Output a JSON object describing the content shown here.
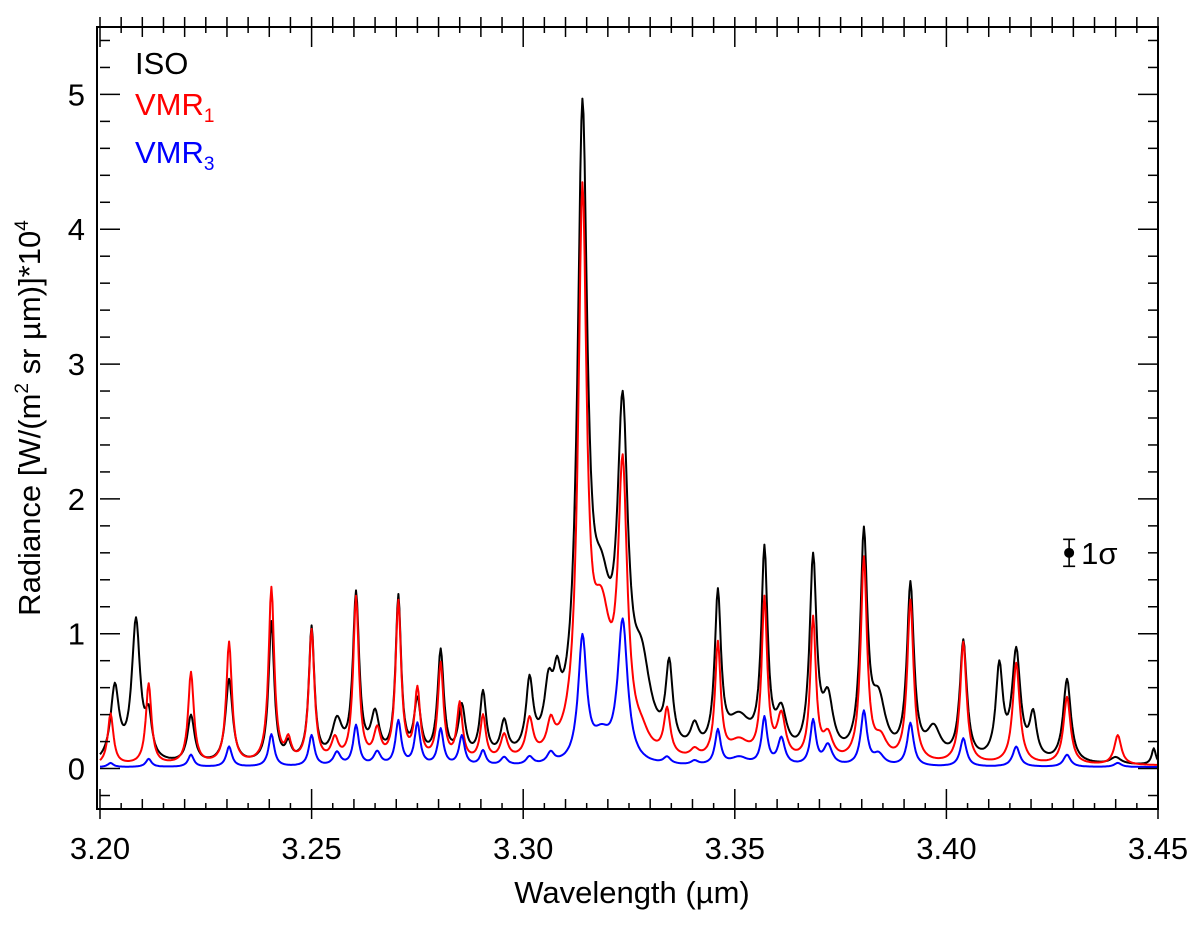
{
  "chart_data": {
    "type": "line",
    "title": "",
    "xlabel": {
      "main": "Wavelength (",
      "unit": "µm",
      "close": ")"
    },
    "ylabel": {
      "p1": "Radiance [W/(m",
      "sup1": "2",
      "p2": " sr ",
      "unit": "µm",
      "p3": ")]*10",
      "sup2": "4"
    },
    "xlim": [
      3.2,
      3.45
    ],
    "ylim": [
      -0.3,
      5.5
    ],
    "x_ticks": [
      3.2,
      3.25,
      3.3,
      3.35,
      3.4,
      3.45
    ],
    "x_tick_labels": [
      "3.20",
      "3.25",
      "3.30",
      "3.35",
      "3.40",
      "3.45"
    ],
    "y_ticks": [
      0,
      1,
      2,
      3,
      4,
      5
    ],
    "y_tick_labels": [
      "0",
      "1",
      "2",
      "3",
      "4",
      "5"
    ],
    "legend": {
      "placement": "top-left",
      "entries": [
        {
          "name": "ISO",
          "sub": "",
          "color": "#000000"
        },
        {
          "name": "VMR",
          "sub": "1",
          "color": "#ff0000"
        },
        {
          "name": "VMR",
          "sub": "3",
          "color": "#0000ff"
        }
      ]
    },
    "error_bar": {
      "x": 3.429,
      "y": 1.6,
      "err": 0.1,
      "label": "1σ"
    },
    "series": [
      {
        "name": "ISO",
        "color": "#000000",
        "baseline": 0.02,
        "peaks": [
          [
            3.2035,
            0.55,
            0.0012
          ],
          [
            3.2085,
            1.04,
            0.0012
          ],
          [
            3.2115,
            0.29,
            0.0009
          ],
          [
            3.2215,
            0.35,
            0.001
          ],
          [
            3.2305,
            0.62,
            0.001
          ],
          [
            3.2405,
            1.04,
            0.0008
          ],
          [
            3.2445,
            0.12,
            0.0008
          ],
          [
            3.25,
            0.99,
            0.0008
          ],
          [
            3.256,
            0.28,
            0.0015
          ],
          [
            3.2605,
            1.22,
            0.0009
          ],
          [
            3.265,
            0.32,
            0.0012
          ],
          [
            3.2705,
            1.2,
            0.0008
          ],
          [
            3.275,
            0.42,
            0.001
          ],
          [
            3.2805,
            0.8,
            0.0009
          ],
          [
            3.2855,
            0.38,
            0.001
          ],
          [
            3.2905,
            0.48,
            0.0009
          ],
          [
            3.2955,
            0.25,
            0.001
          ],
          [
            3.3015,
            0.52,
            0.001
          ],
          [
            3.306,
            0.4,
            0.0012
          ],
          [
            3.308,
            0.35,
            0.001
          ],
          [
            3.314,
            4.55,
            0.0014
          ],
          [
            3.3185,
            0.95,
            0.003
          ],
          [
            3.3235,
            2.28,
            0.0015
          ],
          [
            3.328,
            0.55,
            0.0025
          ],
          [
            3.3345,
            0.6,
            0.001
          ],
          [
            3.3405,
            0.18,
            0.0012
          ],
          [
            3.346,
            1.15,
            0.0009
          ],
          [
            3.351,
            0.28,
            0.0035
          ],
          [
            3.357,
            1.48,
            0.0009
          ],
          [
            3.361,
            0.3,
            0.0015
          ],
          [
            3.3685,
            1.45,
            0.001
          ],
          [
            3.372,
            0.4,
            0.0015
          ],
          [
            3.3805,
            1.62,
            0.001
          ],
          [
            3.384,
            0.4,
            0.002
          ],
          [
            3.3915,
            1.28,
            0.001
          ],
          [
            3.397,
            0.22,
            0.002
          ],
          [
            3.404,
            0.88,
            0.001
          ],
          [
            3.4125,
            0.68,
            0.001
          ],
          [
            3.4165,
            0.8,
            0.0012
          ],
          [
            3.4205,
            0.32,
            0.001
          ],
          [
            3.4285,
            0.62,
            0.0011
          ],
          [
            3.44,
            0.05,
            0.0015
          ],
          [
            3.449,
            0.12,
            0.0006
          ]
        ]
      },
      {
        "name": "VMR1",
        "color": "#ff0000",
        "baseline": 0.02,
        "peaks": [
          [
            3.2025,
            0.38,
            0.0008
          ],
          [
            3.2115,
            0.6,
            0.0008
          ],
          [
            3.2215,
            0.68,
            0.0008
          ],
          [
            3.2305,
            0.9,
            0.0008
          ],
          [
            3.2405,
            1.3,
            0.0008
          ],
          [
            3.2445,
            0.15,
            0.0008
          ],
          [
            3.25,
            0.98,
            0.0008
          ],
          [
            3.2555,
            0.16,
            0.001
          ],
          [
            3.2605,
            1.22,
            0.0008
          ],
          [
            3.2655,
            0.22,
            0.001
          ],
          [
            3.2705,
            1.18,
            0.0008
          ],
          [
            3.275,
            0.52,
            0.0008
          ],
          [
            3.2805,
            0.72,
            0.0008
          ],
          [
            3.285,
            0.42,
            0.0008
          ],
          [
            3.2905,
            0.33,
            0.0008
          ],
          [
            3.2955,
            0.18,
            0.001
          ],
          [
            3.3015,
            0.28,
            0.001
          ],
          [
            3.3065,
            0.2,
            0.001
          ],
          [
            3.314,
            4.02,
            0.0012
          ],
          [
            3.3185,
            0.92,
            0.0028
          ],
          [
            3.3235,
            2.0,
            0.0013
          ],
          [
            3.328,
            0.1,
            0.002
          ],
          [
            3.334,
            0.34,
            0.0009
          ],
          [
            3.3405,
            0.06,
            0.0012
          ],
          [
            3.346,
            0.85,
            0.0008
          ],
          [
            3.351,
            0.14,
            0.003
          ],
          [
            3.357,
            1.18,
            0.0008
          ],
          [
            3.361,
            0.32,
            0.0012
          ],
          [
            3.3685,
            1.05,
            0.0008
          ],
          [
            3.372,
            0.18,
            0.0014
          ],
          [
            3.3805,
            1.5,
            0.0009
          ],
          [
            3.3845,
            0.15,
            0.0018
          ],
          [
            3.3915,
            1.2,
            0.0009
          ],
          [
            3.404,
            0.9,
            0.0009
          ],
          [
            3.4165,
            0.75,
            0.001
          ],
          [
            3.4285,
            0.5,
            0.001
          ],
          [
            3.4405,
            0.22,
            0.001
          ]
        ]
      },
      {
        "name": "VMR3",
        "color": "#0000ff",
        "baseline": 0.01,
        "peaks": [
          [
            3.2025,
            0.03,
            0.0008
          ],
          [
            3.2115,
            0.06,
            0.0008
          ],
          [
            3.2215,
            0.09,
            0.0008
          ],
          [
            3.2305,
            0.15,
            0.0008
          ],
          [
            3.2405,
            0.24,
            0.0008
          ],
          [
            3.25,
            0.23,
            0.0008
          ],
          [
            3.256,
            0.1,
            0.001
          ],
          [
            3.2605,
            0.3,
            0.0008
          ],
          [
            3.2655,
            0.1,
            0.001
          ],
          [
            3.2705,
            0.33,
            0.0008
          ],
          [
            3.275,
            0.31,
            0.0008
          ],
          [
            3.2805,
            0.27,
            0.0008
          ],
          [
            3.2855,
            0.22,
            0.0008
          ],
          [
            3.2905,
            0.11,
            0.0008
          ],
          [
            3.2955,
            0.06,
            0.001
          ],
          [
            3.3015,
            0.06,
            0.001
          ],
          [
            3.3065,
            0.08,
            0.001
          ],
          [
            3.314,
            0.92,
            0.0012
          ],
          [
            3.3185,
            0.18,
            0.0025
          ],
          [
            3.3235,
            1.05,
            0.0014
          ],
          [
            3.334,
            0.05,
            0.001
          ],
          [
            3.3405,
            0.03,
            0.001
          ],
          [
            3.346,
            0.26,
            0.0008
          ],
          [
            3.351,
            0.06,
            0.0025
          ],
          [
            3.357,
            0.35,
            0.0008
          ],
          [
            3.361,
            0.2,
            0.001
          ],
          [
            3.3685,
            0.33,
            0.0008
          ],
          [
            3.372,
            0.15,
            0.0012
          ],
          [
            3.3805,
            0.4,
            0.0009
          ],
          [
            3.384,
            0.08,
            0.0015
          ],
          [
            3.3915,
            0.32,
            0.0009
          ],
          [
            3.404,
            0.21,
            0.0009
          ],
          [
            3.4165,
            0.15,
            0.001
          ],
          [
            3.4285,
            0.09,
            0.001
          ],
          [
            3.4405,
            0.03,
            0.001
          ]
        ]
      }
    ]
  }
}
